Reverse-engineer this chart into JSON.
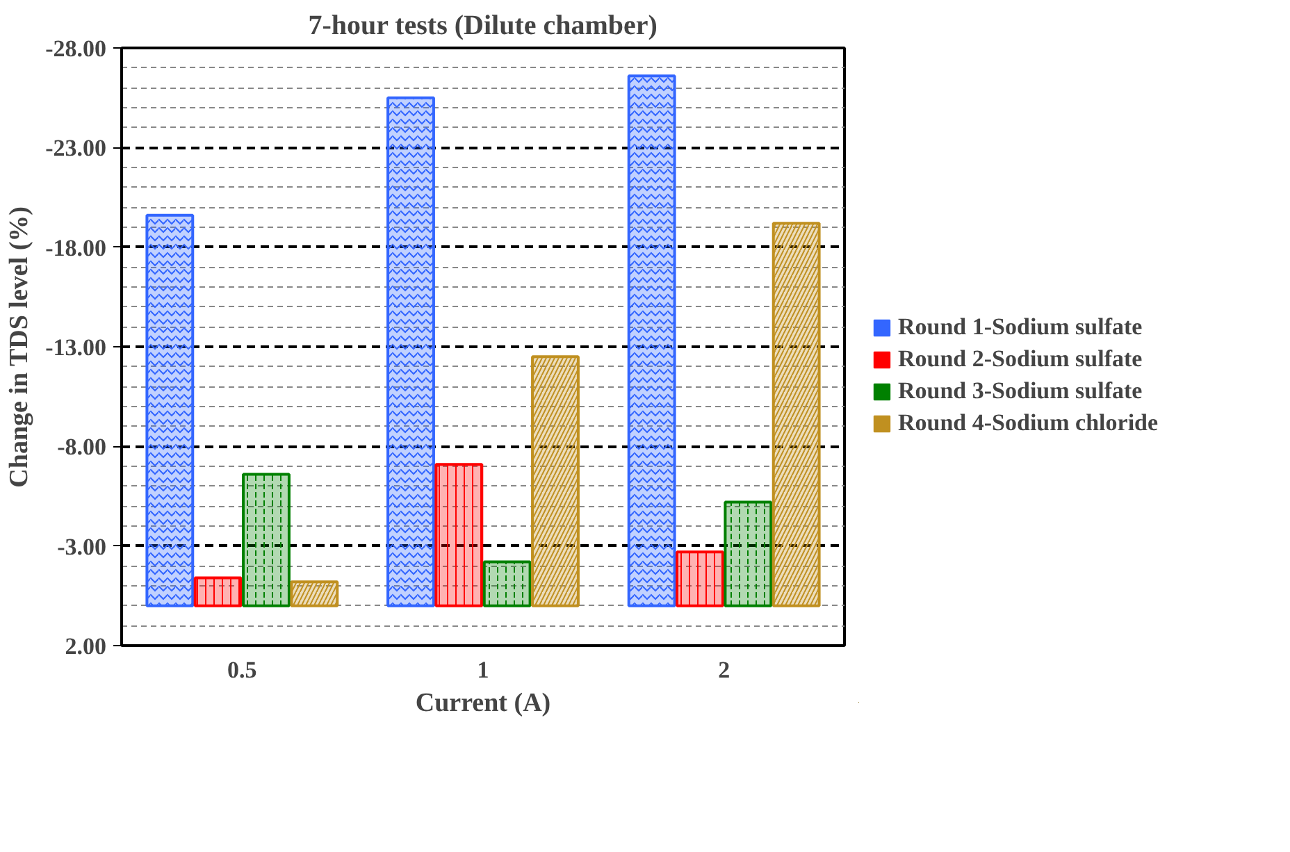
{
  "chart_data": {
    "type": "bar",
    "title": "7-hour tests (Dilute chamber)",
    "xlabel": "Current (A)",
    "ylabel": "Change in TDS level (%)",
    "categories": [
      "0.5",
      "1",
      "2"
    ],
    "series": [
      {
        "name": "Round 1-Sodium sulfate",
        "color": "#3366ff",
        "values": [
          -19.6,
          -25.5,
          -26.6
        ]
      },
      {
        "name": "Round 2-Sodium sulfate",
        "color": "#ff0000",
        "values": [
          -1.4,
          -7.1,
          -2.7
        ]
      },
      {
        "name": "Round 3-Sodium sulfate",
        "color": "#008000",
        "values": [
          -6.6,
          -2.2,
          -5.2
        ]
      },
      {
        "name": "Round 4-Sodium chloride",
        "color": "#c09020",
        "values": [
          -1.2,
          -12.5,
          -19.2
        ]
      }
    ],
    "ylim": [
      2,
      -28
    ],
    "yticks": [
      {
        "value": 2,
        "label": "2.00"
      },
      {
        "value": -3,
        "label": "-3.00"
      },
      {
        "value": -8,
        "label": "-8.00"
      },
      {
        "value": -13,
        "label": "-13.00"
      },
      {
        "value": -18,
        "label": "-18.00"
      },
      {
        "value": -23,
        "label": "-23.00"
      },
      {
        "value": -28,
        "label": "-28.00"
      }
    ],
    "grid": "y",
    "legend": "right"
  }
}
